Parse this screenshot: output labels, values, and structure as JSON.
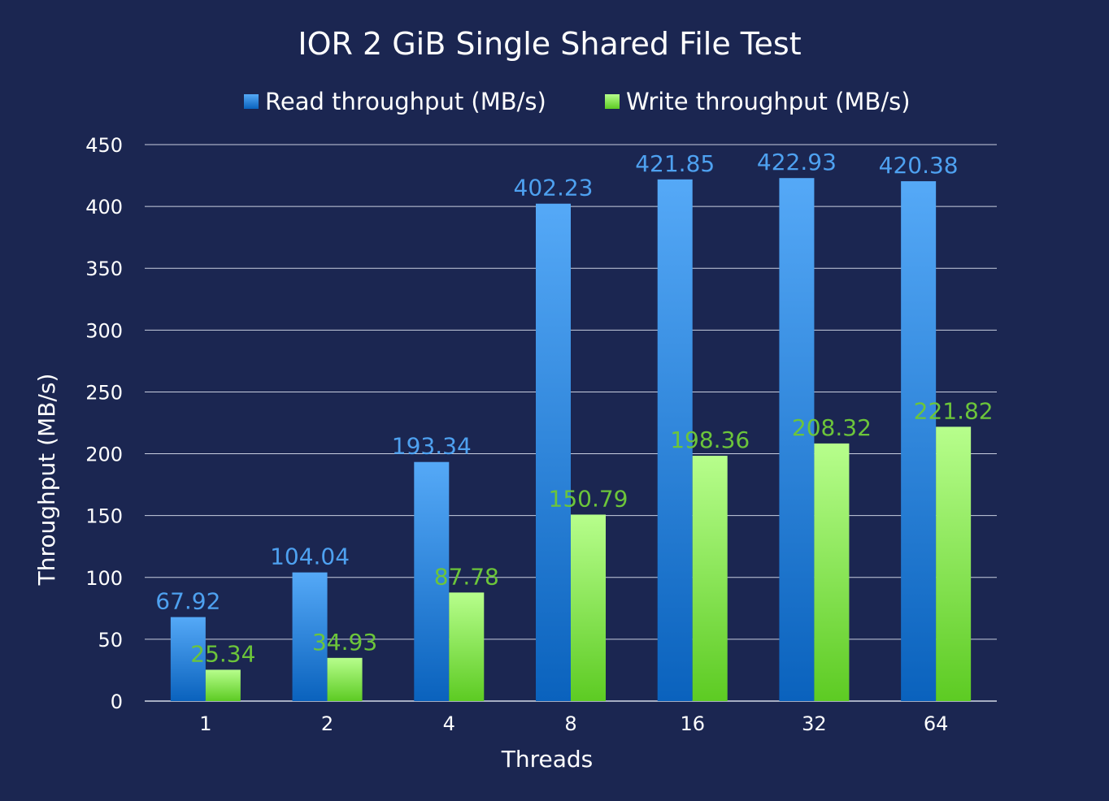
{
  "chart_data": {
    "type": "bar",
    "title": "IOR 2 GiB Single Shared File Test",
    "xlabel": "Threads",
    "ylabel": "Throughput (MB/s)",
    "categories": [
      "1",
      "2",
      "4",
      "8",
      "16",
      "32",
      "64"
    ],
    "series": [
      {
        "name": "Read throughput (MB/s)",
        "values": [
          67.92,
          104.04,
          193.34,
          402.23,
          421.85,
          422.93,
          420.38
        ],
        "labels": [
          "67.92",
          "104.04",
          "193.34",
          "402.23",
          "421.85",
          "422.93",
          "420.38"
        ],
        "color": "#4ea1f0"
      },
      {
        "name": "Write throughput (MB/s)",
        "values": [
          25.34,
          34.93,
          87.78,
          150.79,
          198.36,
          208.32,
          221.82
        ],
        "labels": [
          "25.34",
          "34.93",
          "87.78",
          "150.79",
          "198.36",
          "208.32",
          "221.82"
        ],
        "color": "#6cc53a"
      }
    ],
    "ylim": [
      0,
      450
    ],
    "yticks": [
      "0",
      "50",
      "100",
      "150",
      "200",
      "250",
      "300",
      "350",
      "400",
      "450"
    ],
    "grid": true,
    "legend": "top-center",
    "background": "#1b2651"
  }
}
